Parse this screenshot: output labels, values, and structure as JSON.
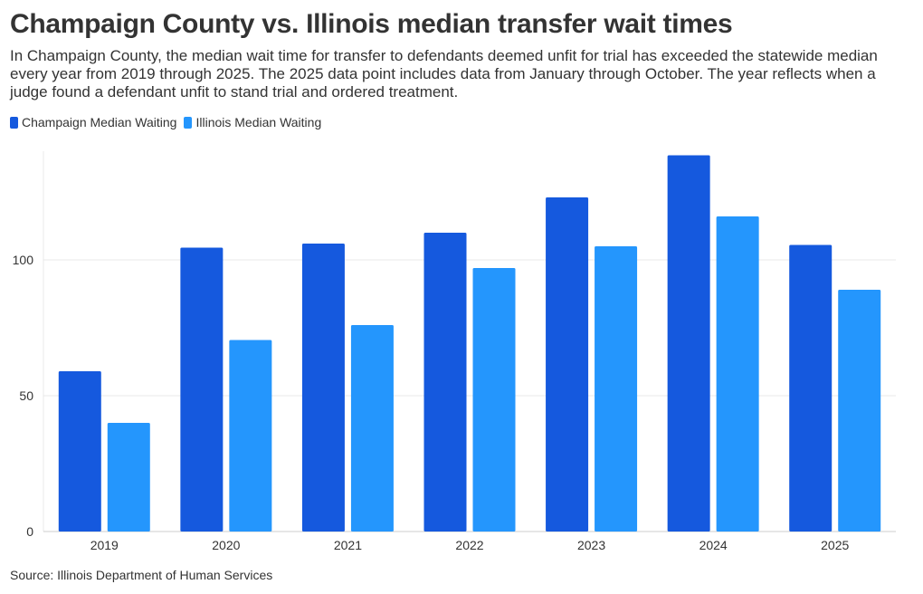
{
  "title": "Champaign County vs. Illinois median transfer wait times",
  "subtitle": "In Champaign County, the median wait time for transfer to defendants deemed unfit for trial has exceeded the statewide median every year from 2019 through 2025. The 2025 data point includes data from January through October. The year reflects when a judge found a defendant unfit to stand trial and ordered treatment.",
  "source": "Source: Illinois Department of Human Services",
  "colors": {
    "champaign": "#1559de",
    "illinois": "#2496fd",
    "grid": "#e8e8e8",
    "axis": "#cccccc",
    "text": "#333333"
  },
  "chart_data": {
    "type": "bar",
    "title": "Champaign County vs. Illinois median transfer wait times",
    "xlabel": "",
    "ylabel": "",
    "categories": [
      "2019",
      "2020",
      "2021",
      "2022",
      "2023",
      "2024",
      "2025"
    ],
    "series": [
      {
        "name": "Champaign Median Waiting",
        "color": "#1559de",
        "values": [
          59,
          104.5,
          106,
          110,
          123,
          138.5,
          105.5
        ]
      },
      {
        "name": "Illinois Median Waiting",
        "color": "#2496fd",
        "values": [
          40,
          70.5,
          76,
          97,
          105,
          116,
          89
        ]
      }
    ],
    "yticks": [
      0,
      50,
      100
    ],
    "ylim": [
      0,
      140
    ],
    "grid": true,
    "legend_position": "top-left"
  }
}
